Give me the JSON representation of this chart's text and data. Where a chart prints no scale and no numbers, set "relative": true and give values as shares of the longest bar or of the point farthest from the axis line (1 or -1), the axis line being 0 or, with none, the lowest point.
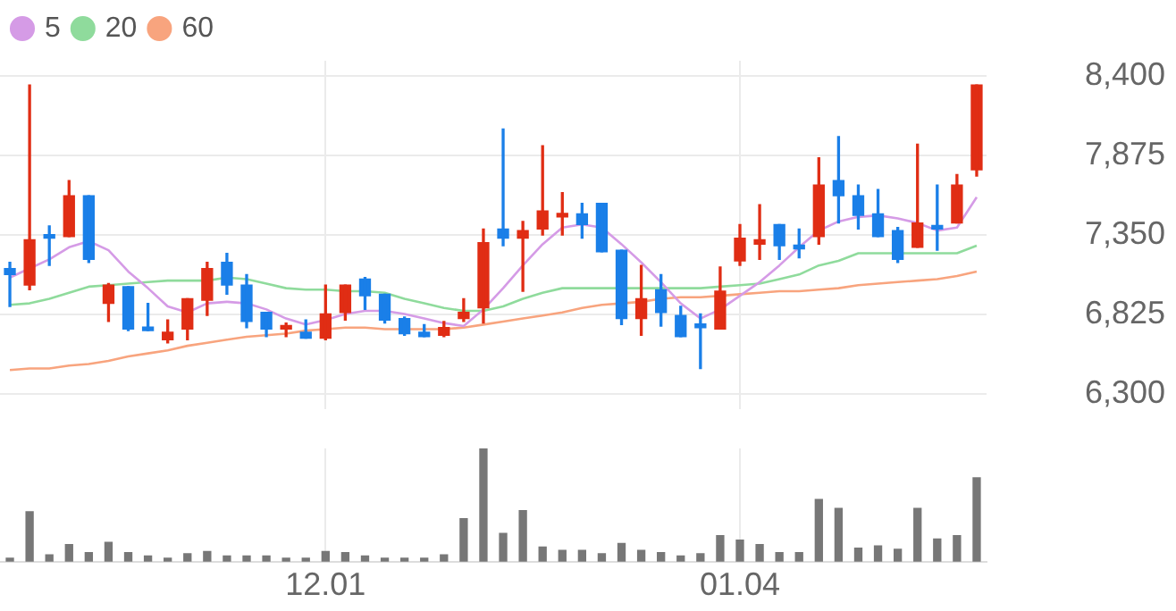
{
  "chart_data": [
    {
      "type": "candlestick",
      "categories": [
        null,
        null,
        null,
        null,
        null,
        null,
        null,
        null,
        null,
        null,
        null,
        null,
        null,
        null,
        null,
        null,
        "12.01",
        null,
        null,
        null,
        null,
        null,
        null,
        null,
        null,
        null,
        null,
        null,
        null,
        null,
        null,
        null,
        null,
        null,
        null,
        null,
        null,
        "01.04",
        null,
        null,
        null,
        null,
        null,
        null,
        null,
        null,
        null,
        null,
        null,
        null
      ],
      "ohlc": [
        [
          7130,
          7170,
          6880,
          7090
        ],
        [
          7020,
          8340,
          6990,
          7320
        ],
        [
          7340,
          7410,
          7150,
          7330
        ],
        [
          7340,
          7710,
          7340,
          7610
        ],
        [
          7610,
          7610,
          7170,
          7190
        ],
        [
          6900,
          7030,
          6780,
          7020
        ],
        [
          7010,
          7010,
          6720,
          6730
        ],
        [
          6740,
          6900,
          6720,
          6720
        ],
        [
          6660,
          6790,
          6640,
          6710
        ],
        [
          6730,
          6930,
          6660,
          6930
        ],
        [
          6920,
          7170,
          6820,
          7130
        ],
        [
          7170,
          7230,
          6960,
          7020
        ],
        [
          7020,
          7090,
          6740,
          6780
        ],
        [
          6840,
          6840,
          6680,
          6730
        ],
        [
          6730,
          6770,
          6680,
          6740
        ],
        [
          6710,
          6790,
          6670,
          6670
        ],
        [
          6670,
          7020,
          6660,
          6830
        ],
        [
          6840,
          7020,
          6790,
          7020
        ],
        [
          7060,
          7070,
          6860,
          6950
        ],
        [
          6960,
          6960,
          6770,
          6790
        ],
        [
          6800,
          6810,
          6690,
          6700
        ],
        [
          6710,
          6760,
          6680,
          6680
        ],
        [
          6690,
          6780,
          6680,
          6740
        ],
        [
          6800,
          6930,
          6780,
          6840
        ],
        [
          6870,
          7390,
          6770,
          7300
        ],
        [
          7390,
          8050,
          7280,
          7330
        ],
        [
          7330,
          7440,
          6980,
          7380
        ],
        [
          7390,
          7940,
          7350,
          7510
        ],
        [
          7470,
          7630,
          7350,
          7490
        ],
        [
          7490,
          7560,
          7330,
          7420
        ],
        [
          7560,
          7560,
          7240,
          7240
        ],
        [
          7250,
          7250,
          6760,
          6800
        ],
        [
          6800,
          7150,
          6690,
          6930
        ],
        [
          6990,
          7090,
          6750,
          6840
        ],
        [
          6820,
          6880,
          6680,
          6680
        ],
        [
          6760,
          6830,
          6470,
          6740
        ],
        [
          6730,
          7140,
          6730,
          6980
        ],
        [
          7180,
          7420,
          7150,
          7330
        ],
        [
          7290,
          7550,
          7190,
          7320
        ],
        [
          7420,
          7420,
          7190,
          7280
        ],
        [
          7280,
          7390,
          7200,
          7260
        ],
        [
          7340,
          7860,
          7290,
          7680
        ],
        [
          7710,
          8000,
          7430,
          7610
        ],
        [
          7610,
          7680,
          7390,
          7480
        ],
        [
          7490,
          7650,
          7340,
          7340
        ],
        [
          7380,
          7400,
          7170,
          7190
        ],
        [
          7270,
          7950,
          7270,
          7430
        ],
        [
          7400,
          7680,
          7250,
          7390
        ],
        [
          7430,
          7750,
          7430,
          7680
        ],
        [
          7780,
          8340,
          7740,
          8340
        ]
      ],
      "colors": [
        "#1a7fe8",
        "#e02d14",
        "#1a7fe8",
        "#e02d14",
        "#1a7fe8",
        "#e02d14",
        "#1a7fe8",
        "#1a7fe8",
        "#e02d14",
        "#e02d14",
        "#e02d14",
        "#1a7fe8",
        "#1a7fe8",
        "#1a7fe8",
        "#e02d14",
        "#1a7fe8",
        "#e02d14",
        "#e02d14",
        "#1a7fe8",
        "#1a7fe8",
        "#1a7fe8",
        "#1a7fe8",
        "#e02d14",
        "#e02d14",
        "#e02d14",
        "#1a7fe8",
        "#e02d14",
        "#e02d14",
        "#e02d14",
        "#1a7fe8",
        "#1a7fe8",
        "#1a7fe8",
        "#e02d14",
        "#1a7fe8",
        "#1a7fe8",
        "#1a7fe8",
        "#e02d14",
        "#e02d14",
        "#e02d14",
        "#1a7fe8",
        "#1a7fe8",
        "#e02d14",
        "#1a7fe8",
        "#1a7fe8",
        "#1a7fe8",
        "#1a7fe8",
        "#e02d14",
        "#1a7fe8",
        "#e02d14",
        "#e02d14"
      ],
      "series": [
        {
          "name": "5",
          "type": "line",
          "color": "#d59be6",
          "values": [
            7070,
            7130,
            7190,
            7270,
            7310,
            7250,
            7110,
            7000,
            6880,
            6840,
            6900,
            6910,
            6900,
            6860,
            6800,
            6760,
            6790,
            6830,
            6850,
            6850,
            6830,
            6800,
            6770,
            6750,
            6860,
            7000,
            7150,
            7290,
            7400,
            7420,
            7400,
            7290,
            7170,
            7040,
            6900,
            6800,
            6860,
            6950,
            7040,
            7150,
            7270,
            7380,
            7440,
            7470,
            7480,
            7460,
            7430,
            7380,
            7400,
            7600
          ]
        },
        {
          "name": "20",
          "type": "line",
          "color": "#8fdb9c",
          "values": [
            6890,
            6900,
            6930,
            6970,
            7010,
            7020,
            7030,
            7040,
            7050,
            7050,
            7050,
            7070,
            7060,
            7030,
            7000,
            6990,
            6990,
            6980,
            6980,
            6970,
            6930,
            6900,
            6870,
            6850,
            6850,
            6880,
            6930,
            6970,
            7000,
            7000,
            7000,
            7000,
            7000,
            7000,
            7000,
            7000,
            7010,
            7020,
            7030,
            7060,
            7090,
            7150,
            7180,
            7230,
            7230,
            7230,
            7230,
            7230,
            7230,
            7280
          ]
        },
        {
          "name": "60",
          "type": "line",
          "color": "#f8a47e",
          "values": [
            6460,
            6470,
            6470,
            6490,
            6500,
            6520,
            6550,
            6570,
            6590,
            6620,
            6640,
            6660,
            6680,
            6690,
            6700,
            6720,
            6730,
            6740,
            6740,
            6730,
            6730,
            6730,
            6730,
            6740,
            6760,
            6780,
            6800,
            6820,
            6840,
            6870,
            6890,
            6900,
            6910,
            6930,
            6940,
            6940,
            6950,
            6960,
            6970,
            6980,
            6980,
            6990,
            7000,
            7020,
            7030,
            7040,
            7050,
            7060,
            7080,
            7110
          ]
        }
      ],
      "ylim": [
        6200,
        8500
      ],
      "yticks": [
        {
          "value": 6300,
          "label": "6,300"
        },
        {
          "value": 6825,
          "label": "6,825"
        },
        {
          "value": 7350,
          "label": "7,350"
        },
        {
          "value": 7875,
          "label": "7,875"
        },
        {
          "value": 8400,
          "label": "8,400"
        }
      ],
      "grid": true,
      "legend": "top left",
      "marker": "none",
      "tick_labels": "y"
    },
    {
      "type": "bar",
      "categories": [
        null,
        null,
        null,
        null,
        null,
        null,
        null,
        null,
        null,
        null,
        null,
        null,
        null,
        null,
        null,
        null,
        "12.01",
        null,
        null,
        null,
        null,
        null,
        null,
        null,
        null,
        null,
        null,
        null,
        null,
        null,
        null,
        null,
        null,
        null,
        null,
        null,
        null,
        "01.04",
        null,
        null,
        null,
        null,
        null,
        null,
        null,
        null,
        null,
        null,
        null,
        null
      ],
      "values": [
        0.03,
        0.44,
        0.06,
        0.15,
        0.08,
        0.17,
        0.08,
        0.05,
        0.03,
        0.07,
        0.09,
        0.05,
        0.05,
        0.05,
        0.03,
        0.03,
        0.09,
        0.08,
        0.05,
        0.03,
        0.03,
        0.03,
        0.06,
        0.38,
        1,
        0.25,
        0.45,
        0.13,
        0.1,
        0.1,
        0.07,
        0.16,
        0.1,
        0.08,
        0.05,
        0.07,
        0.23,
        0.19,
        0.15,
        0.08,
        0.08,
        0.55,
        0.47,
        0.12,
        0.14,
        0.11,
        0.47,
        0.2,
        0.23,
        0.74
      ],
      "color": "#777777",
      "relative": true,
      "grid": "x",
      "tick_labels": "x"
    }
  ]
}
